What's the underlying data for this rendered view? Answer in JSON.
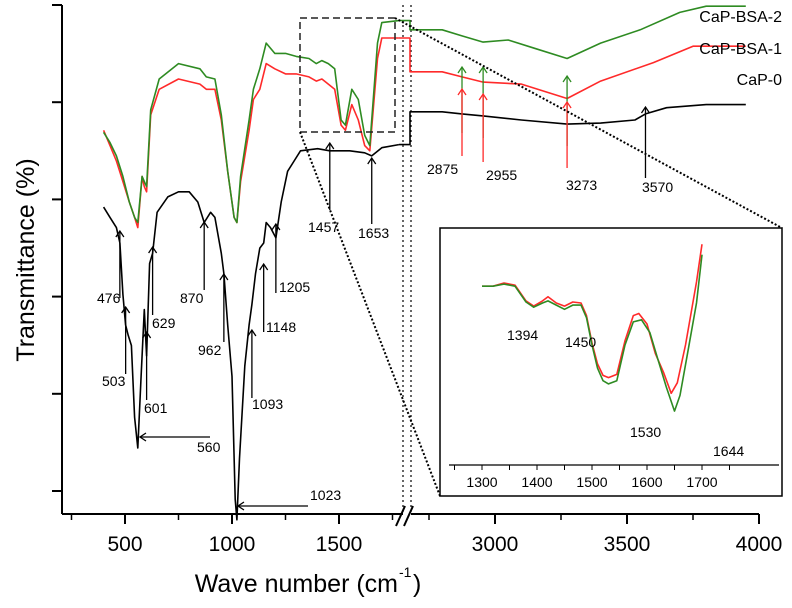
{
  "chart_data": {
    "type": "line",
    "title": "",
    "xlabel": "Wave number (cm",
    "xlabel_sup": "-1",
    "xlabel_close": ")",
    "ylabel": "Transmittance (%)",
    "x_axis": {
      "broken": true,
      "segment_1": {
        "range": [
          250,
          1800
        ],
        "ticks": [
          500,
          1000,
          1500
        ],
        "tick_labels": [
          "500",
          "1000",
          "1500"
        ],
        "minor_ticks": [
          250,
          750,
          1250,
          1750
        ]
      },
      "segment_2": {
        "range": [
          2750,
          4000
        ],
        "ticks": [
          3000,
          3500,
          4000
        ],
        "tick_labels": [
          "3000",
          "3500",
          "4000"
        ],
        "minor_ticks": [
          2750,
          3250,
          3750
        ]
      }
    },
    "y_axis": {
      "range": [
        0,
        5.3
      ],
      "ticks": [
        0,
        1,
        2,
        3,
        4,
        5
      ],
      "tick_labels_visible": false
    },
    "grid": false,
    "legend": {
      "placement": "top-right",
      "entries": [
        {
          "label": "CaP-BSA-2",
          "color": "#2e8b22"
        },
        {
          "label": "CaP-BSA-1",
          "color": "#ff2a2a"
        },
        {
          "label": "CaP-0",
          "color": "#000000"
        }
      ]
    },
    "series": [
      {
        "name": "CaP-0",
        "color": "#000000",
        "points": [
          [
            400,
            3.15
          ],
          [
            430,
            3.05
          ],
          [
            460,
            2.95
          ],
          [
            476,
            2.8
          ],
          [
            490,
            2.3
          ],
          [
            503,
            2.0
          ],
          [
            515,
            1.9
          ],
          [
            530,
            1.8
          ],
          [
            545,
            1.1
          ],
          [
            560,
            0.8
          ],
          [
            575,
            1.5
          ],
          [
            590,
            2.15
          ],
          [
            601,
            1.7
          ],
          [
            615,
            2.6
          ],
          [
            629,
            2.7
          ],
          [
            650,
            3.1
          ],
          [
            700,
            3.25
          ],
          [
            750,
            3.3
          ],
          [
            800,
            3.3
          ],
          [
            840,
            3.2
          ],
          [
            870,
            3.0
          ],
          [
            900,
            3.1
          ],
          [
            920,
            3.05
          ],
          [
            950,
            2.7
          ],
          [
            962,
            2.5
          ],
          [
            980,
            2.0
          ],
          [
            1000,
            1.5
          ],
          [
            1015,
            0.3
          ],
          [
            1023,
            0.1
          ],
          [
            1035,
            0.7
          ],
          [
            1060,
            1.6
          ],
          [
            1080,
            2.0
          ],
          [
            1093,
            2.2
          ],
          [
            1110,
            2.5
          ],
          [
            1130,
            2.75
          ],
          [
            1148,
            2.8
          ],
          [
            1160,
            3.0
          ],
          [
            1180,
            2.95
          ],
          [
            1205,
            2.85
          ],
          [
            1230,
            3.2
          ],
          [
            1260,
            3.5
          ],
          [
            1290,
            3.6
          ],
          [
            1320,
            3.7
          ],
          [
            1400,
            3.72
          ],
          [
            1457,
            3.7
          ],
          [
            1550,
            3.7
          ],
          [
            1620,
            3.68
          ],
          [
            1653,
            3.65
          ],
          [
            1700,
            3.73
          ],
          [
            1780,
            3.76
          ]
        ],
        "points_right": [
          [
            2800,
            4.08
          ],
          [
            2875,
            4.06
          ],
          [
            2955,
            4.04
          ],
          [
            3100,
            4.0
          ],
          [
            3273,
            3.96
          ],
          [
            3400,
            3.97
          ],
          [
            3530,
            4.0
          ],
          [
            3570,
            4.06
          ],
          [
            3650,
            4.12
          ],
          [
            3800,
            4.15
          ],
          [
            3950,
            4.15
          ]
        ]
      },
      {
        "name": "CaP-BSA-1",
        "color": "#ff2a2a",
        "points": [
          [
            400,
            3.9
          ],
          [
            430,
            3.75
          ],
          [
            460,
            3.6
          ],
          [
            490,
            3.4
          ],
          [
            520,
            3.2
          ],
          [
            545,
            3.05
          ],
          [
            560,
            2.95
          ],
          [
            580,
            3.45
          ],
          [
            590,
            3.35
          ],
          [
            601,
            3.3
          ],
          [
            620,
            4.05
          ],
          [
            660,
            4.3
          ],
          [
            750,
            4.4
          ],
          [
            850,
            4.35
          ],
          [
            880,
            4.3
          ],
          [
            920,
            4.3
          ],
          [
            950,
            4.0
          ],
          [
            980,
            3.5
          ],
          [
            1010,
            3.05
          ],
          [
            1023,
            3.0
          ],
          [
            1040,
            3.4
          ],
          [
            1080,
            3.9
          ],
          [
            1100,
            4.2
          ],
          [
            1130,
            4.3
          ],
          [
            1160,
            4.55
          ],
          [
            1200,
            4.5
          ],
          [
            1250,
            4.45
          ],
          [
            1300,
            4.45
          ],
          [
            1360,
            4.42
          ],
          [
            1394,
            4.38
          ],
          [
            1420,
            4.4
          ],
          [
            1450,
            4.35
          ],
          [
            1480,
            4.3
          ],
          [
            1510,
            3.95
          ],
          [
            1530,
            3.9
          ],
          [
            1560,
            4.15
          ],
          [
            1590,
            4.0
          ],
          [
            1620,
            3.75
          ],
          [
            1644,
            3.7
          ],
          [
            1680,
            4.6
          ],
          [
            1700,
            4.8
          ],
          [
            1780,
            4.8
          ]
        ],
        "points_right": [
          [
            2800,
            4.47
          ],
          [
            2875,
            4.42
          ],
          [
            2955,
            4.37
          ],
          [
            3100,
            4.35
          ],
          [
            3273,
            4.21
          ],
          [
            3400,
            4.38
          ],
          [
            3600,
            4.56
          ],
          [
            3750,
            4.72
          ],
          [
            3950,
            4.72
          ]
        ]
      },
      {
        "name": "CaP-BSA-2",
        "color": "#2e8b22",
        "points": [
          [
            400,
            3.88
          ],
          [
            430,
            3.78
          ],
          [
            460,
            3.65
          ],
          [
            490,
            3.45
          ],
          [
            520,
            3.2
          ],
          [
            545,
            3.05
          ],
          [
            560,
            3.0
          ],
          [
            580,
            3.45
          ],
          [
            590,
            3.4
          ],
          [
            601,
            3.35
          ],
          [
            620,
            4.1
          ],
          [
            660,
            4.4
          ],
          [
            750,
            4.55
          ],
          [
            850,
            4.5
          ],
          [
            880,
            4.42
          ],
          [
            920,
            4.4
          ],
          [
            950,
            4.05
          ],
          [
            980,
            3.5
          ],
          [
            1010,
            3.05
          ],
          [
            1023,
            3.0
          ],
          [
            1040,
            3.45
          ],
          [
            1080,
            4.0
          ],
          [
            1100,
            4.3
          ],
          [
            1130,
            4.5
          ],
          [
            1160,
            4.75
          ],
          [
            1200,
            4.65
          ],
          [
            1250,
            4.65
          ],
          [
            1300,
            4.62
          ],
          [
            1360,
            4.6
          ],
          [
            1394,
            4.55
          ],
          [
            1420,
            4.58
          ],
          [
            1450,
            4.55
          ],
          [
            1480,
            4.5
          ],
          [
            1510,
            4.0
          ],
          [
            1530,
            3.95
          ],
          [
            1560,
            4.3
          ],
          [
            1590,
            4.2
          ],
          [
            1620,
            3.85
          ],
          [
            1644,
            3.75
          ],
          [
            1680,
            4.75
          ],
          [
            1700,
            4.95
          ],
          [
            1780,
            4.97
          ]
        ],
        "points_right": [
          [
            2800,
            4.88
          ],
          [
            2875,
            4.82
          ],
          [
            2955,
            4.76
          ],
          [
            3050,
            4.78
          ],
          [
            3150,
            4.7
          ],
          [
            3273,
            4.6
          ],
          [
            3400,
            4.75
          ],
          [
            3550,
            4.88
          ],
          [
            3700,
            5.05
          ],
          [
            3800,
            5.11
          ],
          [
            3950,
            5.11
          ]
        ]
      }
    ],
    "annotations": {
      "cap0_peaks_left": [
        {
          "label": "476",
          "x": 476,
          "direction": "up"
        },
        {
          "label": "503",
          "x": 503,
          "direction": "up"
        },
        {
          "label": "601",
          "x": 601,
          "direction": "up"
        },
        {
          "label": "629",
          "x": 629,
          "direction": "up"
        },
        {
          "label": "870",
          "x": 870,
          "direction": "up"
        },
        {
          "label": "962",
          "x": 962,
          "direction": "up"
        },
        {
          "label": "1093",
          "x": 1093,
          "direction": "up"
        },
        {
          "label": "1148",
          "x": 1148,
          "direction": "up"
        },
        {
          "label": "1205",
          "x": 1205,
          "direction": "up"
        },
        {
          "label": "1457",
          "x": 1457,
          "direction": "up"
        },
        {
          "label": "1653",
          "x": 1653,
          "direction": "up"
        },
        {
          "label": "560",
          "x": 560,
          "direction": "left"
        },
        {
          "label": "1023",
          "x": 1023,
          "direction": "left"
        }
      ],
      "right_peaks": [
        {
          "label": "2875",
          "x": 2875
        },
        {
          "label": "2955",
          "x": 2955
        },
        {
          "label": "3273",
          "x": 3273
        },
        {
          "label": "3570",
          "x": 3570
        }
      ],
      "zoom_box": {
        "x_range": [
          1300,
          1700
        ]
      }
    },
    "inset": {
      "type": "line",
      "x_range": [
        1250,
        1750
      ],
      "ticks": [
        1300,
        1400,
        1500,
        1600,
        1700
      ],
      "tick_labels": [
        "1300",
        "1400",
        "1500",
        "1600",
        "1700"
      ],
      "y_range": [
        0,
        10
      ],
      "series": [
        {
          "name": "CaP-BSA-1",
          "color": "#ff2a2a",
          "points": [
            [
              1300,
              7.8
            ],
            [
              1320,
              7.8
            ],
            [
              1340,
              7.95
            ],
            [
              1360,
              7.85
            ],
            [
              1380,
              7.1
            ],
            [
              1394,
              6.85
            ],
            [
              1410,
              7.1
            ],
            [
              1420,
              7.3
            ],
            [
              1435,
              7.0
            ],
            [
              1450,
              6.85
            ],
            [
              1465,
              7.05
            ],
            [
              1480,
              7.0
            ],
            [
              1490,
              6.4
            ],
            [
              1500,
              5.1
            ],
            [
              1510,
              4.1
            ],
            [
              1520,
              3.55
            ],
            [
              1530,
              3.45
            ],
            [
              1545,
              3.6
            ],
            [
              1560,
              5.2
            ],
            [
              1575,
              6.4
            ],
            [
              1585,
              6.5
            ],
            [
              1600,
              6.0
            ],
            [
              1615,
              4.6
            ],
            [
              1630,
              3.7
            ],
            [
              1644,
              2.7
            ],
            [
              1655,
              3.2
            ],
            [
              1670,
              5.0
            ],
            [
              1690,
              8.0
            ],
            [
              1700,
              9.8
            ]
          ]
        },
        {
          "name": "CaP-BSA-2",
          "color": "#2e8b22",
          "points": [
            [
              1300,
              7.8
            ],
            [
              1320,
              7.8
            ],
            [
              1340,
              7.9
            ],
            [
              1360,
              7.8
            ],
            [
              1380,
              7.05
            ],
            [
              1394,
              6.8
            ],
            [
              1410,
              7.0
            ],
            [
              1420,
              7.1
            ],
            [
              1435,
              6.9
            ],
            [
              1450,
              6.7
            ],
            [
              1465,
              6.9
            ],
            [
              1480,
              6.9
            ],
            [
              1490,
              6.3
            ],
            [
              1500,
              5.0
            ],
            [
              1510,
              3.9
            ],
            [
              1520,
              3.3
            ],
            [
              1530,
              3.15
            ],
            [
              1545,
              3.3
            ],
            [
              1560,
              5.0
            ],
            [
              1575,
              6.1
            ],
            [
              1590,
              6.2
            ],
            [
              1605,
              5.6
            ],
            [
              1620,
              4.3
            ],
            [
              1635,
              3.0
            ],
            [
              1650,
              1.85
            ],
            [
              1660,
              2.6
            ],
            [
              1675,
              4.8
            ],
            [
              1690,
              7.0
            ],
            [
              1700,
              9.3
            ]
          ]
        }
      ],
      "annotations": [
        {
          "label": "1394",
          "x": 1394
        },
        {
          "label": "1450",
          "x": 1450
        },
        {
          "label": "1530",
          "x": 1530
        },
        {
          "label": "1644",
          "x": 1644
        }
      ]
    }
  }
}
